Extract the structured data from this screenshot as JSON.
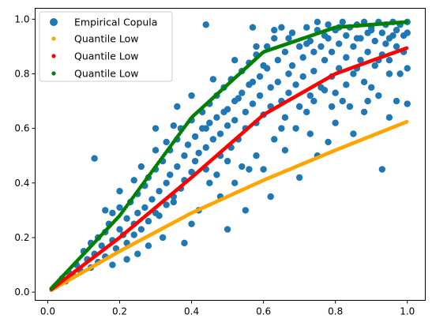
{
  "chart_data": {
    "type": "scatter",
    "title": "",
    "xlabel": "",
    "ylabel": "",
    "xlim": [
      -0.035,
      1.05
    ],
    "ylim": [
      -0.03,
      1.04
    ],
    "x_ticks": [
      0.0,
      0.2,
      0.4,
      0.6,
      0.8,
      1.0
    ],
    "x_tick_labels": [
      "0.0",
      "0.2",
      "0.4",
      "0.6",
      "0.8",
      "1.0"
    ],
    "y_ticks": [
      0.0,
      0.2,
      0.4,
      0.6,
      0.8,
      1.0
    ],
    "y_tick_labels": [
      "0.0",
      "0.2",
      "0.4",
      "0.6",
      "0.8",
      "1.0"
    ],
    "grid": false,
    "legend": {
      "placement": "top-left",
      "entries": [
        "Empirical Copula",
        "Quantile Low",
        "Quantile Low",
        "Quantile Low"
      ]
    },
    "series": [
      {
        "name": "Empirical Copula",
        "color": "#1f77b4",
        "marker": "large-circle",
        "points": [
          [
            0.02,
            0.02
          ],
          [
            0.03,
            0.03
          ],
          [
            0.04,
            0.05
          ],
          [
            0.05,
            0.04
          ],
          [
            0.06,
            0.07
          ],
          [
            0.07,
            0.06
          ],
          [
            0.08,
            0.1
          ],
          [
            0.09,
            0.08
          ],
          [
            0.1,
            0.15
          ],
          [
            0.11,
            0.12
          ],
          [
            0.12,
            0.09
          ],
          [
            0.12,
            0.18
          ],
          [
            0.13,
            0.14
          ],
          [
            0.14,
            0.2
          ],
          [
            0.14,
            0.11
          ],
          [
            0.15,
            0.17
          ],
          [
            0.16,
            0.22
          ],
          [
            0.16,
            0.13
          ],
          [
            0.17,
            0.25
          ],
          [
            0.18,
            0.19
          ],
          [
            0.18,
            0.29
          ],
          [
            0.19,
            0.16
          ],
          [
            0.2,
            0.23
          ],
          [
            0.2,
            0.31
          ],
          [
            0.21,
            0.21
          ],
          [
            0.22,
            0.27
          ],
          [
            0.22,
            0.18
          ],
          [
            0.23,
            0.33
          ],
          [
            0.24,
            0.25
          ],
          [
            0.24,
            0.21
          ],
          [
            0.25,
            0.36
          ],
          [
            0.25,
            0.29
          ],
          [
            0.26,
            0.23
          ],
          [
            0.27,
            0.39
          ],
          [
            0.27,
            0.31
          ],
          [
            0.28,
            0.26
          ],
          [
            0.28,
            0.42
          ],
          [
            0.29,
            0.34
          ],
          [
            0.3,
            0.29
          ],
          [
            0.3,
            0.45
          ],
          [
            0.31,
            0.37
          ],
          [
            0.31,
            0.28
          ],
          [
            0.32,
            0.48
          ],
          [
            0.33,
            0.4
          ],
          [
            0.33,
            0.32
          ],
          [
            0.34,
            0.52
          ],
          [
            0.34,
            0.43
          ],
          [
            0.35,
            0.35
          ],
          [
            0.36,
            0.56
          ],
          [
            0.36,
            0.46
          ],
          [
            0.37,
            0.38
          ],
          [
            0.37,
            0.6
          ],
          [
            0.38,
            0.5
          ],
          [
            0.38,
            0.41
          ],
          [
            0.39,
            0.54
          ],
          [
            0.4,
            0.44
          ],
          [
            0.4,
            0.63
          ],
          [
            0.41,
            0.48
          ],
          [
            0.41,
            0.57
          ],
          [
            0.42,
            0.51
          ],
          [
            0.43,
            0.66
          ],
          [
            0.43,
            0.6
          ],
          [
            0.44,
            0.45
          ],
          [
            0.44,
            0.53
          ],
          [
            0.45,
            0.69
          ],
          [
            0.45,
            0.62
          ],
          [
            0.46,
            0.56
          ],
          [
            0.47,
            0.72
          ],
          [
            0.47,
            0.64
          ],
          [
            0.48,
            0.5
          ],
          [
            0.48,
            0.58
          ],
          [
            0.49,
            0.75
          ],
          [
            0.5,
            0.67
          ],
          [
            0.5,
            0.61
          ],
          [
            0.51,
            0.53
          ],
          [
            0.51,
            0.78
          ],
          [
            0.52,
            0.7
          ],
          [
            0.52,
            0.63
          ],
          [
            0.53,
            0.56
          ],
          [
            0.54,
            0.81
          ],
          [
            0.54,
            0.73
          ],
          [
            0.55,
            0.66
          ],
          [
            0.55,
            0.6
          ],
          [
            0.56,
            0.84
          ],
          [
            0.56,
            0.76
          ],
          [
            0.57,
            0.69
          ],
          [
            0.58,
            0.62
          ],
          [
            0.58,
            0.87
          ],
          [
            0.59,
            0.79
          ],
          [
            0.59,
            0.72
          ],
          [
            0.6,
            0.65
          ],
          [
            0.61,
            0.9
          ],
          [
            0.61,
            0.82
          ],
          [
            0.62,
            0.75
          ],
          [
            0.62,
            0.68
          ],
          [
            0.63,
            0.93
          ],
          [
            0.64,
            0.85
          ],
          [
            0.64,
            0.77
          ],
          [
            0.65,
            0.7
          ],
          [
            0.65,
            0.6
          ],
          [
            0.66,
            0.88
          ],
          [
            0.67,
            0.8
          ],
          [
            0.67,
            0.73
          ],
          [
            0.68,
            0.95
          ],
          [
            0.68,
            0.83
          ],
          [
            0.69,
            0.76
          ],
          [
            0.7,
            0.9
          ],
          [
            0.7,
            0.68
          ],
          [
            0.71,
            0.86
          ],
          [
            0.71,
            0.79
          ],
          [
            0.72,
            0.97
          ],
          [
            0.73,
            0.92
          ],
          [
            0.73,
            0.72
          ],
          [
            0.74,
            0.88
          ],
          [
            0.74,
            0.81
          ],
          [
            0.75,
            0.96
          ],
          [
            0.76,
            0.9
          ],
          [
            0.76,
            0.75
          ],
          [
            0.77,
            0.85
          ],
          [
            0.78,
            0.98
          ],
          [
            0.78,
            0.93
          ],
          [
            0.79,
            0.79
          ],
          [
            0.79,
            0.88
          ],
          [
            0.8,
            0.96
          ],
          [
            0.81,
            0.91
          ],
          [
            0.81,
            0.82
          ],
          [
            0.82,
            0.99
          ],
          [
            0.83,
            0.94
          ],
          [
            0.83,
            0.86
          ],
          [
            0.84,
            0.97
          ],
          [
            0.85,
            0.9
          ],
          [
            0.85,
            0.8
          ],
          [
            0.86,
            0.98
          ],
          [
            0.87,
            0.93
          ],
          [
            0.87,
            0.85
          ],
          [
            0.88,
            0.99
          ],
          [
            0.89,
            0.95
          ],
          [
            0.89,
            0.88
          ],
          [
            0.9,
            0.97
          ],
          [
            0.91,
            0.92
          ],
          [
            0.91,
            0.83
          ],
          [
            0.92,
            0.99
          ],
          [
            0.93,
            0.95
          ],
          [
            0.93,
            0.87
          ],
          [
            0.94,
            0.98
          ],
          [
            0.95,
            0.93
          ],
          [
            0.95,
            0.85
          ],
          [
            0.96,
            0.99
          ],
          [
            0.97,
            0.96
          ],
          [
            0.97,
            0.9
          ],
          [
            0.98,
            0.98
          ],
          [
            0.99,
            0.94
          ],
          [
            0.99,
            0.88
          ],
          [
            1.0,
            0.99
          ],
          [
            1.0,
            0.95
          ],
          [
            0.13,
            0.49
          ],
          [
            0.44,
            0.98
          ],
          [
            0.57,
            0.97
          ],
          [
            0.93,
            0.45
          ],
          [
            0.65,
            0.97
          ],
          [
            0.75,
            0.99
          ],
          [
            0.3,
            0.6
          ],
          [
            0.35,
            0.33
          ],
          [
            0.38,
            0.18
          ],
          [
            0.25,
            0.14
          ],
          [
            0.5,
            0.23
          ],
          [
            0.55,
            0.3
          ],
          [
            0.6,
            0.45
          ],
          [
            0.62,
            0.35
          ],
          [
            0.7,
            0.42
          ],
          [
            0.75,
            0.5
          ],
          [
            0.78,
            0.55
          ],
          [
            0.8,
            0.62
          ],
          [
            0.82,
            0.7
          ],
          [
            0.85,
            0.58
          ],
          [
            0.88,
            0.66
          ],
          [
            0.9,
            0.75
          ],
          [
            0.92,
            0.72
          ],
          [
            0.95,
            0.64
          ],
          [
            0.97,
            0.7
          ],
          [
            1.0,
            0.69
          ],
          [
            0.98,
            0.8
          ],
          [
            1.0,
            0.82
          ],
          [
            0.45,
            0.4
          ],
          [
            0.48,
            0.35
          ],
          [
            0.52,
            0.4
          ],
          [
            0.56,
            0.45
          ],
          [
            0.42,
            0.3
          ],
          [
            0.4,
            0.25
          ],
          [
            0.32,
            0.2
          ],
          [
            0.28,
            0.17
          ],
          [
            0.22,
            0.12
          ],
          [
            0.18,
            0.1
          ],
          [
            0.36,
            0.68
          ],
          [
            0.4,
            0.72
          ],
          [
            0.46,
            0.78
          ],
          [
            0.52,
            0.85
          ],
          [
            0.58,
            0.9
          ],
          [
            0.63,
            0.96
          ],
          [
            0.67,
            0.93
          ],
          [
            0.72,
            0.91
          ],
          [
            0.77,
            0.94
          ],
          [
            0.81,
            0.97
          ],
          [
            0.86,
            0.93
          ],
          [
            0.9,
            0.96
          ],
          [
            0.94,
            0.91
          ],
          [
            0.96,
            0.94
          ],
          [
            0.3,
            0.52
          ],
          [
            0.26,
            0.46
          ],
          [
            0.2,
            0.37
          ],
          [
            0.16,
            0.3
          ],
          [
            0.24,
            0.41
          ],
          [
            0.35,
            0.61
          ],
          [
            0.33,
            0.55
          ],
          [
            0.44,
            0.6
          ],
          [
            0.49,
            0.66
          ],
          [
            0.53,
            0.71
          ],
          [
            0.57,
            0.77
          ],
          [
            0.6,
            0.83
          ],
          [
            0.66,
            0.64
          ],
          [
            0.69,
            0.6
          ],
          [
            0.72,
            0.66
          ],
          [
            0.74,
            0.7
          ],
          [
            0.77,
            0.74
          ],
          [
            0.79,
            0.68
          ],
          [
            0.83,
            0.76
          ],
          [
            0.86,
            0.82
          ],
          [
            0.88,
            0.77
          ],
          [
            0.92,
            0.85
          ],
          [
            0.95,
            0.8
          ],
          [
            0.63,
            0.56
          ],
          [
            0.66,
            0.52
          ],
          [
            0.58,
            0.5
          ],
          [
            0.54,
            0.46
          ],
          [
            0.47,
            0.43
          ],
          [
            0.5,
            0.48
          ],
          [
            0.73,
            0.58
          ],
          [
            0.8,
            0.73
          ],
          [
            0.84,
            0.68
          ],
          [
            0.89,
            0.7
          ]
        ]
      },
      {
        "name": "Quantile Low",
        "color": "#ffa500",
        "marker": "small-dot",
        "curve": {
          "x_start": 0.01,
          "x_end": 1.0,
          "step": 0.004,
          "x": [
            0.0,
            0.2,
            0.4,
            0.6,
            0.8,
            1.0
          ],
          "y": [
            0.0,
            0.15,
            0.29,
            0.41,
            0.52,
            0.625
          ]
        }
      },
      {
        "name": "Quantile Low",
        "color": "#ff0000",
        "marker": "small-dot",
        "curve": {
          "x_start": 0.01,
          "x_end": 1.0,
          "step": 0.004,
          "x": [
            0.0,
            0.2,
            0.4,
            0.6,
            0.8,
            1.0
          ],
          "y": [
            0.0,
            0.2,
            0.42,
            0.65,
            0.8,
            0.895
          ]
        }
      },
      {
        "name": "Quantile Low",
        "color": "#008000",
        "marker": "small-dot",
        "curve": {
          "x_start": 0.01,
          "x_end": 1.0,
          "step": 0.004,
          "x": [
            0.0,
            0.2,
            0.4,
            0.6,
            0.8,
            1.0
          ],
          "y": [
            0.0,
            0.28,
            0.64,
            0.88,
            0.97,
            0.99
          ]
        }
      }
    ]
  }
}
